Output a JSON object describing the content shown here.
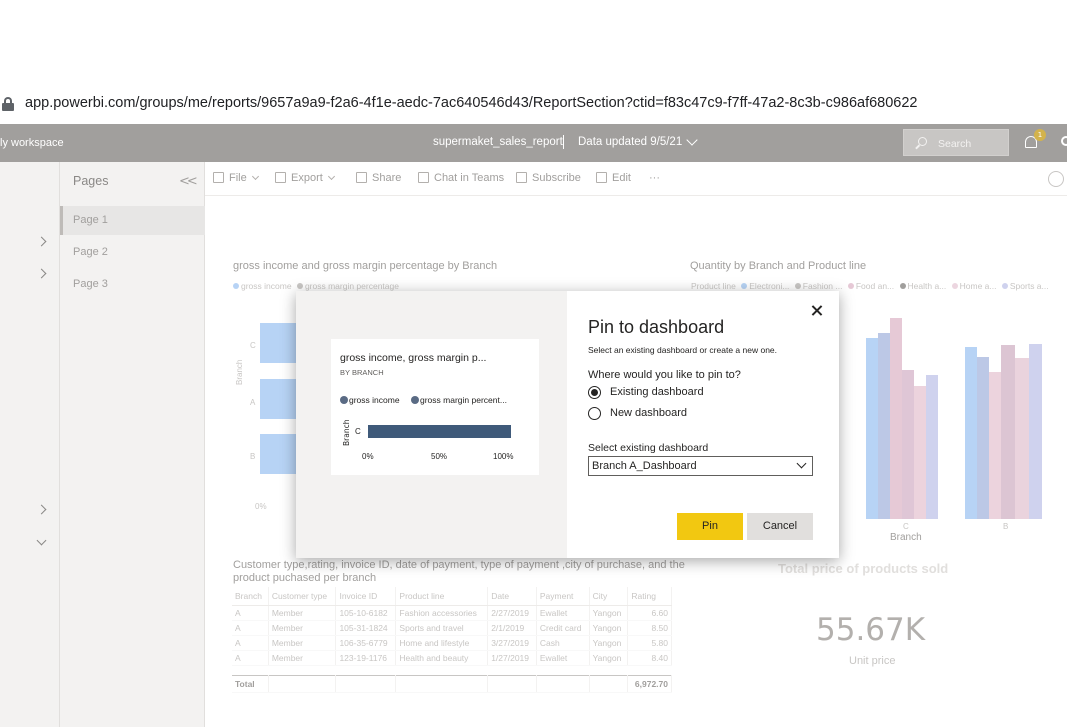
{
  "browser": {
    "url": "app.powerbi.com/groups/me/reports/9657a9a9-f2a6-4f1e-aedc-7ac640546d43/ReportSection?ctid=f83c47c9-f7ff-47a2-8c3b-c986af680622"
  },
  "header": {
    "workspace": "ly workspace",
    "report_name": "supermaket_sales_report",
    "separator": "|",
    "data_updated": "Data updated 9/5/21",
    "search_placeholder": "Search",
    "notification_count": "1",
    "bar_color": "#a19f9d"
  },
  "pages": {
    "title": "Pages",
    "collapse_glyph": "<<",
    "items": [
      "Page 1",
      "Page 2",
      "Page 3"
    ],
    "active_index": 0
  },
  "toolbar": {
    "items": [
      {
        "label": "File",
        "icon": "file-icon"
      },
      {
        "label": "Export",
        "icon": "export-icon"
      },
      {
        "label": "Share",
        "icon": "share-icon"
      },
      {
        "label": "Chat in Teams",
        "icon": "teams-icon"
      },
      {
        "label": "Subscribe",
        "icon": "mail-icon"
      },
      {
        "label": "Edit",
        "icon": "pencil-icon"
      }
    ],
    "more": "···"
  },
  "visuals": {
    "gross": {
      "title": "gross income and gross margin percentage by Branch",
      "legend": [
        "gross income",
        "gross margin percentage"
      ],
      "axis_label": "Branch",
      "categories": [
        "C",
        "A",
        "B"
      ],
      "x_tick": "0%"
    },
    "quantity": {
      "title": "Quantity by Branch and Product line",
      "legend_title": "Product line",
      "legend": [
        "Electroni...",
        "Fashion ...",
        "Food an...",
        "Health a...",
        "Home a...",
        "Sports a..."
      ],
      "colors": [
        "#b7d3f5",
        "#a8c4ec",
        "#e6c9d6",
        "#ead3dd",
        "#ecd6e0",
        "#cfd2ee"
      ],
      "x_label": "Branch",
      "x_ticks": [
        "C",
        "B"
      ]
    },
    "table": {
      "title": "Customer type,rating, invoice ID, date of payment, type of payment ,city of purchase, and the product puchased per branch",
      "columns": [
        "Branch",
        "Customer type",
        "Invoice ID",
        "Product line",
        "Date",
        "Payment",
        "City",
        "Rating"
      ],
      "rows": [
        [
          "A",
          "Member",
          "105-10-6182",
          "Fashion accessories",
          "2/27/2019",
          "Ewallet",
          "Yangon",
          "6.60"
        ],
        [
          "A",
          "Member",
          "105-31-1824",
          "Sports and travel",
          "2/1/2019",
          "Credit card",
          "Yangon",
          "8.50"
        ],
        [
          "A",
          "Member",
          "106-35-6779",
          "Home and lifestyle",
          "3/27/2019",
          "Cash",
          "Yangon",
          "5.80"
        ],
        [
          "A",
          "Member",
          "123-19-1176",
          "Health and beauty",
          "1/27/2019",
          "Ewallet",
          "Yangon",
          "8.40"
        ]
      ],
      "total_label": "Total",
      "total_value": "6,972.70"
    },
    "kpi": {
      "title": "Total price of products sold",
      "value": "55.67K",
      "label": "Unit price"
    }
  },
  "modal": {
    "title": "Pin to dashboard",
    "subtitle": "Select an existing dashboard or create a new one.",
    "question": "Where would you like to pin to?",
    "options": [
      "Existing dashboard",
      "New dashboard"
    ],
    "selected_option": 0,
    "select_label": "Select existing dashboard",
    "select_value": "Branch A_Dashboard",
    "pin_label": "Pin",
    "cancel_label": "Cancel",
    "preview": {
      "title": "gross income, gross margin p...",
      "subtitle": "BY BRANCH",
      "legend": [
        "gross income",
        "gross margin percent..."
      ],
      "axis_label": "Branch",
      "category": "C",
      "ticks": [
        "0%",
        "50%",
        "100%"
      ],
      "bar_color": "#3f5a7a"
    }
  }
}
